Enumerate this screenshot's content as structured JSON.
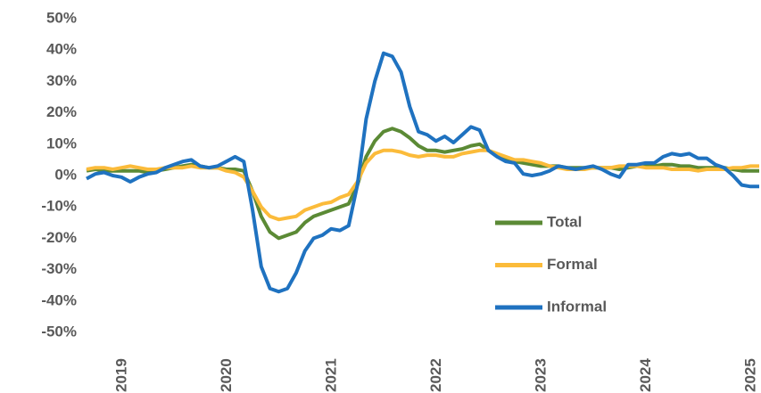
{
  "chart_data": {
    "type": "line",
    "categories": [
      null,
      null,
      null,
      null,
      "2019",
      null,
      null,
      null,
      null,
      null,
      null,
      null,
      null,
      null,
      null,
      null,
      "2020",
      null,
      null,
      null,
      null,
      null,
      null,
      null,
      null,
      null,
      null,
      null,
      "2021",
      null,
      null,
      null,
      null,
      null,
      null,
      null,
      null,
      null,
      null,
      null,
      "2022",
      null,
      null,
      null,
      null,
      null,
      null,
      null,
      null,
      null,
      null,
      null,
      "2023",
      null,
      null,
      null,
      null,
      null,
      null,
      null,
      null,
      null,
      null,
      null,
      "2024",
      null,
      null,
      null,
      null,
      null,
      null,
      null,
      null,
      null,
      null,
      null,
      "2025",
      null
    ],
    "series": [
      {
        "name": "Total",
        "color": "#5b8a35",
        "values": [
          1.5,
          2,
          1.5,
          1.5,
          1.5,
          1.5,
          1.5,
          1,
          1.5,
          2,
          2.5,
          3,
          3.5,
          3,
          2.5,
          2.5,
          2,
          2,
          1.5,
          -5,
          -13,
          -18,
          -20,
          -19,
          -18,
          -15,
          -13,
          -12,
          -11,
          -10,
          -9,
          -3,
          6,
          11,
          14,
          15,
          14,
          12,
          9.5,
          8,
          8,
          7.5,
          8,
          8.5,
          9.5,
          10,
          8,
          6.5,
          5,
          4.5,
          4,
          3.5,
          3,
          3,
          3,
          2.5,
          2.5,
          2.5,
          2.5,
          2.5,
          2.5,
          2,
          2.5,
          3,
          3,
          3,
          3.5,
          3.5,
          3,
          3,
          2.5,
          2.5,
          2.5,
          2.5,
          2,
          1.5,
          1.5,
          1.5
        ]
      },
      {
        "name": "Formal",
        "color": "#fbbb3a",
        "values": [
          2,
          2.5,
          2.5,
          2,
          2.5,
          3,
          2.5,
          2,
          2,
          2.5,
          2.5,
          2.5,
          3,
          2.5,
          2.5,
          2.5,
          1.5,
          1,
          -0.5,
          -5,
          -10,
          -13,
          -14,
          -13.5,
          -13,
          -11,
          -10,
          -9,
          -8.5,
          -7,
          -6,
          -2,
          4,
          7,
          8,
          8,
          7.5,
          6.5,
          6,
          6.5,
          6.5,
          6,
          6,
          7,
          7.5,
          8,
          8,
          7,
          6,
          5,
          5,
          4.5,
          4,
          3,
          2.5,
          2,
          2,
          2,
          2.5,
          2.5,
          2.5,
          3,
          3,
          3,
          2.5,
          2.5,
          2.5,
          2,
          2,
          2,
          1.5,
          2,
          2,
          2,
          2.5,
          2.5,
          3,
          3
        ]
      },
      {
        "name": "Informal",
        "color": "#1f72c0",
        "values": [
          -1,
          0.5,
          1,
          0,
          -0.5,
          -2,
          -0.5,
          0.5,
          1,
          2.5,
          3.5,
          4.5,
          5,
          3,
          2.5,
          3,
          4.5,
          6,
          4.5,
          -11,
          -29,
          -36,
          -37,
          -36,
          -31,
          -24,
          -20,
          -19,
          -17,
          -17.5,
          -16,
          -3,
          18,
          30,
          39,
          38,
          33,
          22,
          14,
          13,
          11,
          12.5,
          10.5,
          13,
          15.5,
          14.5,
          8,
          6,
          4.5,
          4,
          0.5,
          0,
          0.5,
          1.5,
          3,
          2.5,
          2,
          2.5,
          3,
          2,
          0.5,
          -0.5,
          3.5,
          3.5,
          4,
          4,
          6,
          7,
          6.5,
          7,
          5.5,
          5.5,
          3.5,
          2.5,
          0,
          -3,
          -3.5,
          -3.5
        ]
      }
    ],
    "ylim": [
      -50,
      50
    ],
    "yticks": [
      {
        "value": -50,
        "label": "-50%"
      },
      {
        "value": -40,
        "label": "-40%"
      },
      {
        "value": -30,
        "label": "-30%"
      },
      {
        "value": -20,
        "label": "-20%"
      },
      {
        "value": -10,
        "label": "-10%"
      },
      {
        "value": 0,
        "label": "0%"
      },
      {
        "value": 10,
        "label": "10%"
      },
      {
        "value": 20,
        "label": "20%"
      },
      {
        "value": 30,
        "label": "30%"
      },
      {
        "value": 40,
        "label": "40%"
      },
      {
        "value": 50,
        "label": "50%"
      }
    ],
    "grid": false,
    "legend_position": "right"
  }
}
